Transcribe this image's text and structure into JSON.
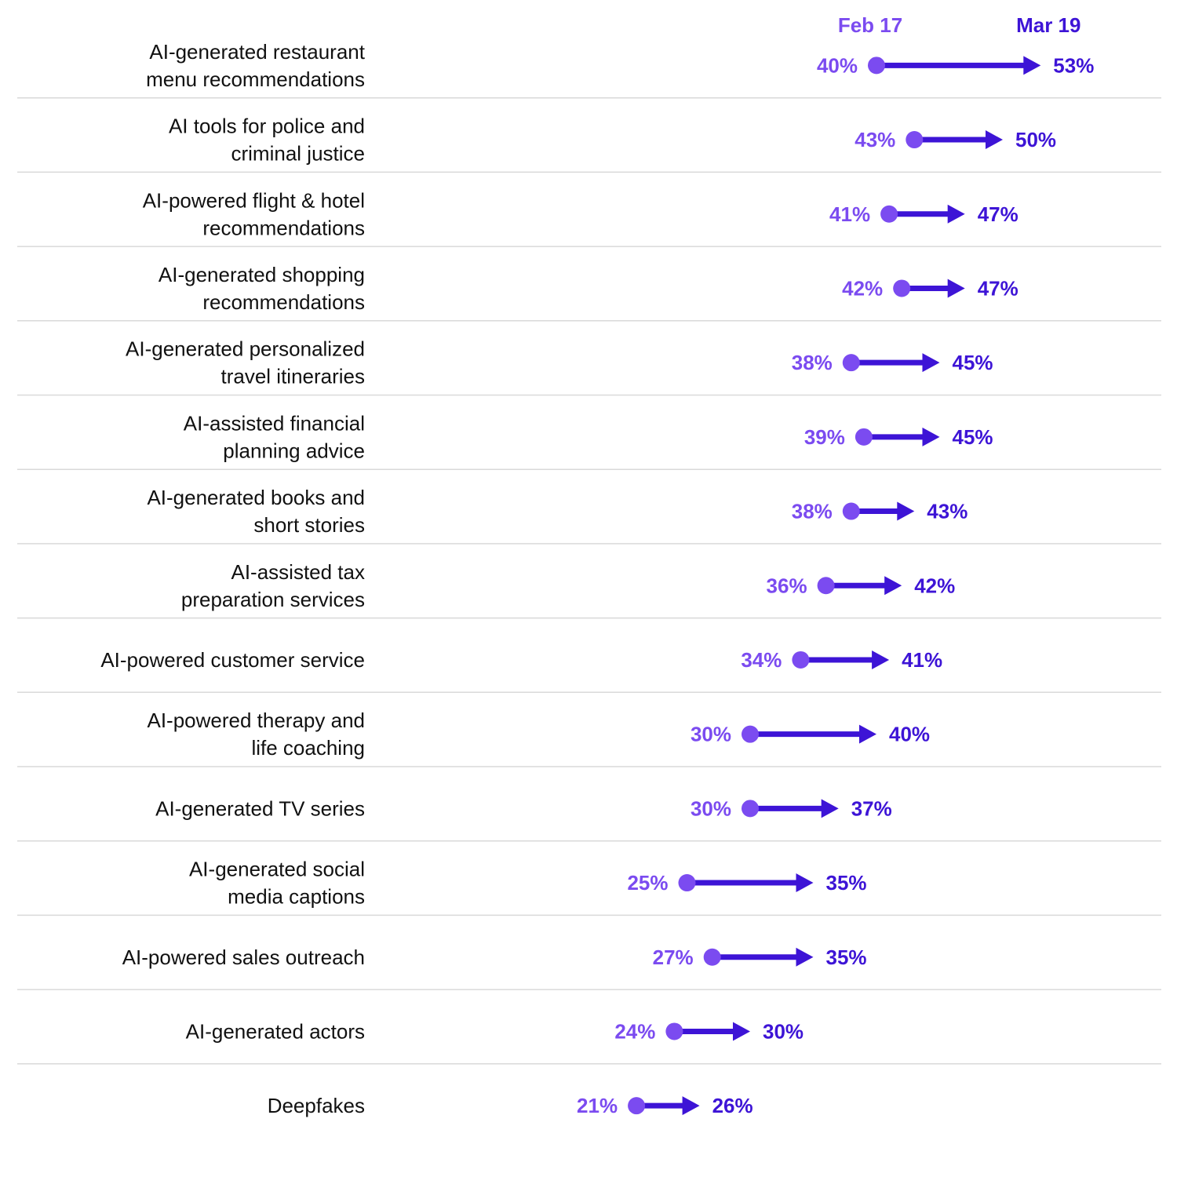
{
  "colors": {
    "start": "#7b4bf0",
    "end": "#3d14d6",
    "divider": "#d9d9d9",
    "text": "#111111"
  },
  "chart_data": {
    "type": "dumbbell",
    "series": [
      {
        "name": "Feb 17"
      },
      {
        "name": "Mar 19"
      }
    ],
    "xlim": [
      0,
      60
    ],
    "unit": "%",
    "categories": [
      {
        "label_lines": [
          "AI-generated restaurant",
          "menu recommendations"
        ],
        "start": 40,
        "end": 53
      },
      {
        "label_lines": [
          "AI tools for police and",
          "criminal justice"
        ],
        "start": 43,
        "end": 50
      },
      {
        "label_lines": [
          "AI-powered flight & hotel",
          "recommendations"
        ],
        "start": 41,
        "end": 47
      },
      {
        "label_lines": [
          "AI-generated shopping",
          "recommendations"
        ],
        "start": 42,
        "end": 47
      },
      {
        "label_lines": [
          "AI-generated personalized",
          "travel itineraries"
        ],
        "start": 38,
        "end": 45
      },
      {
        "label_lines": [
          "AI-assisted financial",
          "planning advice"
        ],
        "start": 39,
        "end": 45
      },
      {
        "label_lines": [
          "AI-generated books and",
          "short stories"
        ],
        "start": 38,
        "end": 43
      },
      {
        "label_lines": [
          "AI-assisted tax",
          "preparation services"
        ],
        "start": 36,
        "end": 42
      },
      {
        "label_lines": [
          "AI-powered customer service"
        ],
        "start": 34,
        "end": 41
      },
      {
        "label_lines": [
          "AI-powered therapy and",
          "life coaching"
        ],
        "start": 30,
        "end": 40
      },
      {
        "label_lines": [
          "AI-generated TV series"
        ],
        "start": 30,
        "end": 37
      },
      {
        "label_lines": [
          "AI-generated social",
          "media captions"
        ],
        "start": 25,
        "end": 35
      },
      {
        "label_lines": [
          "AI-powered sales outreach"
        ],
        "start": 27,
        "end": 35
      },
      {
        "label_lines": [
          "AI-generated actors"
        ],
        "start": 24,
        "end": 30
      },
      {
        "label_lines": [
          "Deepfakes"
        ],
        "start": 21,
        "end": 26
      }
    ]
  }
}
